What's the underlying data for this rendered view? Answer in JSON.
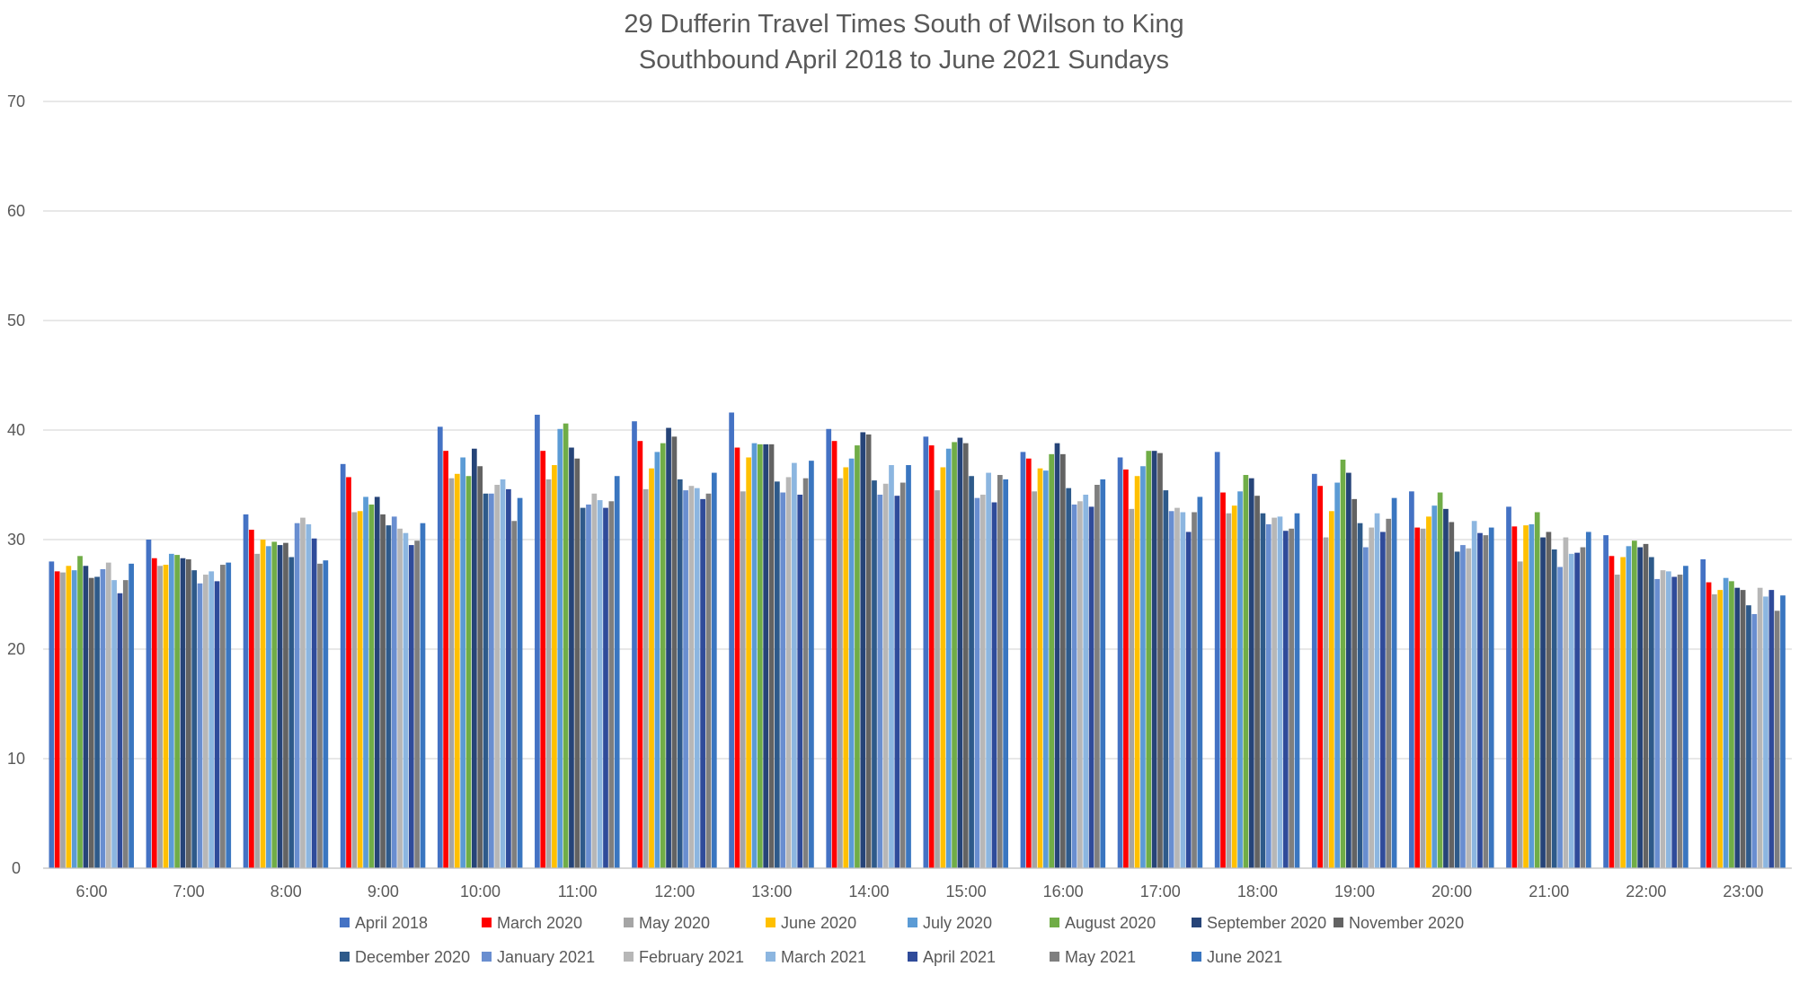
{
  "chart_data": {
    "type": "bar",
    "title": [
      "29 Dufferin Travel Times South of Wilson to King",
      "Southbound April 2018 to June 2021 Sundays"
    ],
    "xlabel": "",
    "ylabel": "",
    "ylim": [
      0,
      70
    ],
    "yticks": [
      0,
      10,
      20,
      30,
      40,
      50,
      60,
      70
    ],
    "grid": true,
    "legend_position": "bottom",
    "categories": [
      "6:00",
      "7:00",
      "8:00",
      "9:00",
      "10:00",
      "11:00",
      "12:00",
      "13:00",
      "14:00",
      "15:00",
      "16:00",
      "17:00",
      "18:00",
      "19:00",
      "20:00",
      "21:00",
      "22:00",
      "23:00"
    ],
    "series": [
      {
        "name": "April 2018",
        "color": "#4472C4",
        "values": [
          28.0,
          30.0,
          32.3,
          36.9,
          40.3,
          41.4,
          40.8,
          41.6,
          40.1,
          39.4,
          38.0,
          37.5,
          38.0,
          36.0,
          34.4,
          33.0,
          30.4,
          28.2
        ]
      },
      {
        "name": "March 2020",
        "color": "#FF0000",
        "values": [
          27.1,
          28.3,
          30.9,
          35.7,
          38.1,
          38.1,
          39.0,
          38.4,
          39.0,
          38.6,
          37.4,
          36.4,
          34.3,
          34.9,
          31.1,
          31.2,
          28.5,
          26.1
        ]
      },
      {
        "name": "May 2020",
        "color": "#A5A5A5",
        "values": [
          27.0,
          27.6,
          28.7,
          32.5,
          35.6,
          35.5,
          34.6,
          34.4,
          35.6,
          34.5,
          34.4,
          32.8,
          32.4,
          30.2,
          31.0,
          28.0,
          26.8,
          25.0
        ]
      },
      {
        "name": "June 2020",
        "color": "#FFC000",
        "values": [
          27.6,
          27.7,
          30.0,
          32.6,
          36.0,
          36.8,
          36.5,
          37.5,
          36.6,
          36.6,
          36.5,
          35.8,
          33.1,
          32.6,
          32.1,
          31.3,
          28.4,
          25.4
        ]
      },
      {
        "name": "July 2020",
        "color": "#5B9BD5",
        "values": [
          27.2,
          28.7,
          29.4,
          33.9,
          37.5,
          40.1,
          38.0,
          38.8,
          37.4,
          38.3,
          36.3,
          36.7,
          34.4,
          35.2,
          33.1,
          31.4,
          29.4,
          26.5
        ]
      },
      {
        "name": "August 2020",
        "color": "#70AD47",
        "values": [
          28.5,
          28.6,
          29.8,
          33.2,
          35.8,
          40.6,
          38.8,
          38.7,
          38.6,
          38.9,
          37.8,
          38.1,
          35.9,
          37.3,
          34.3,
          32.5,
          29.9,
          26.2
        ]
      },
      {
        "name": "September 2020",
        "color": "#264478",
        "values": [
          27.6,
          28.3,
          29.5,
          33.9,
          38.3,
          38.4,
          40.2,
          38.7,
          39.8,
          39.3,
          38.8,
          38.1,
          35.6,
          36.1,
          32.8,
          30.2,
          29.3,
          25.6
        ]
      },
      {
        "name": "November 2020",
        "color": "#636363",
        "values": [
          26.5,
          28.2,
          29.7,
          32.3,
          36.7,
          37.4,
          39.4,
          38.7,
          39.6,
          38.8,
          37.8,
          37.9,
          34.0,
          33.7,
          31.6,
          30.7,
          29.6,
          25.4
        ]
      },
      {
        "name": "December 2020",
        "color": "#2E5A8A",
        "values": [
          26.6,
          27.2,
          28.4,
          31.3,
          34.2,
          32.9,
          35.5,
          35.3,
          35.4,
          35.8,
          34.7,
          34.5,
          32.4,
          31.5,
          28.9,
          29.1,
          28.4,
          24.0
        ]
      },
      {
        "name": "January 2021",
        "color": "#698ED0",
        "values": [
          27.3,
          26.0,
          31.5,
          32.1,
          34.2,
          33.2,
          34.5,
          34.3,
          34.1,
          33.8,
          33.2,
          32.6,
          31.4,
          29.3,
          29.5,
          27.5,
          26.4,
          23.2
        ]
      },
      {
        "name": "February 2021",
        "color": "#B7B7B7",
        "values": [
          27.9,
          26.8,
          32.0,
          31.0,
          35.0,
          34.2,
          34.9,
          35.7,
          35.1,
          34.1,
          33.5,
          32.9,
          32.0,
          31.1,
          29.2,
          30.2,
          27.2,
          25.6
        ]
      },
      {
        "name": "March 2021",
        "color": "#8CB6E0",
        "values": [
          26.3,
          27.1,
          31.4,
          30.6,
          35.5,
          33.6,
          34.7,
          37.0,
          36.8,
          36.1,
          34.1,
          32.5,
          32.1,
          32.4,
          31.7,
          28.7,
          27.1,
          24.8
        ]
      },
      {
        "name": "April 2021",
        "color": "#2F4B9A",
        "values": [
          25.1,
          26.2,
          30.1,
          29.5,
          34.6,
          32.9,
          33.7,
          34.1,
          34.0,
          33.4,
          33.0,
          30.7,
          30.8,
          30.7,
          30.6,
          28.8,
          26.6,
          25.4
        ]
      },
      {
        "name": "May 2021",
        "color": "#7F7F7F",
        "values": [
          26.3,
          27.7,
          27.8,
          29.9,
          31.7,
          33.5,
          34.2,
          35.6,
          35.2,
          35.9,
          35.0,
          32.5,
          31.0,
          31.9,
          30.4,
          29.3,
          26.8,
          23.5
        ]
      },
      {
        "name": "June 2021",
        "color": "#3A76C0",
        "values": [
          27.8,
          27.9,
          28.1,
          31.5,
          33.8,
          35.8,
          36.1,
          37.2,
          36.8,
          35.5,
          35.5,
          33.9,
          32.4,
          33.8,
          31.1,
          30.7,
          27.6,
          24.9
        ]
      }
    ]
  }
}
